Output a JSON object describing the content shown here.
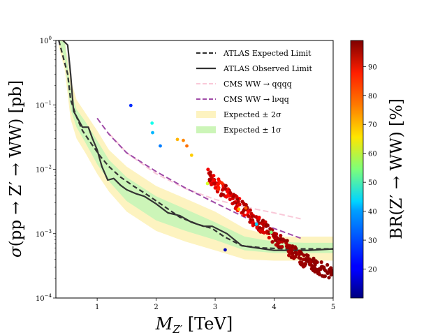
{
  "chart_data": {
    "type": "line",
    "title": "",
    "xlabel": "M_{Z'} [TeV]",
    "ylabel": "σ(pp → Z' → WW) [pb]",
    "x_scale": "linear",
    "y_scale": "log",
    "xlim": [
      0.3,
      5.0
    ],
    "ylim": [
      0.0001,
      1.0
    ],
    "x_ticks": [
      {
        "value": 1,
        "label": "1"
      },
      {
        "value": 2,
        "label": "2"
      },
      {
        "value": 3,
        "label": "3"
      },
      {
        "value": 4,
        "label": "4"
      },
      {
        "value": 5,
        "label": "5"
      }
    ],
    "y_ticks": [
      {
        "value": 0.0001,
        "base": "10",
        "exp": "−4"
      },
      {
        "value": 0.001,
        "base": "10",
        "exp": "−3"
      },
      {
        "value": 0.01,
        "base": "10",
        "exp": "−2"
      },
      {
        "value": 0.1,
        "base": "10",
        "exp": "−1"
      },
      {
        "value": 1,
        "base": "10",
        "exp": "0"
      }
    ],
    "bands": [
      {
        "name": "Expected ± 2σ",
        "color": "#fdf3c0",
        "x": [
          0.35,
          0.45,
          0.55,
          0.65,
          0.8,
          1.0,
          1.2,
          1.5,
          2.0,
          2.5,
          3.0,
          3.5,
          4.0,
          4.5,
          5.0
        ],
        "upper": [
          1.0,
          1.0,
          0.25,
          0.12,
          0.075,
          0.04,
          0.02,
          0.011,
          0.0055,
          0.0035,
          0.0022,
          0.0012,
          0.0009,
          0.0009,
          0.0009
        ],
        "lower": [
          0.8,
          0.35,
          0.06,
          0.03,
          0.018,
          0.0085,
          0.0045,
          0.0022,
          0.0011,
          0.00075,
          0.00055,
          0.0004,
          0.00038,
          0.00038,
          0.00038
        ]
      },
      {
        "name": "Expected ± 1σ",
        "color": "#ccf5b8",
        "x": [
          0.35,
          0.45,
          0.55,
          0.65,
          0.8,
          1.0,
          1.2,
          1.5,
          2.0,
          2.5,
          3.0,
          3.5,
          4.0,
          4.5,
          5.0
        ],
        "upper": [
          1.0,
          0.95,
          0.17,
          0.085,
          0.055,
          0.028,
          0.014,
          0.0075,
          0.0038,
          0.0024,
          0.0015,
          0.0009,
          0.00075,
          0.00072,
          0.00072
        ],
        "lower": [
          1.0,
          0.5,
          0.085,
          0.045,
          0.026,
          0.012,
          0.0065,
          0.0032,
          0.0016,
          0.0011,
          0.0008,
          0.00055,
          0.0005,
          0.0005,
          0.0005
        ]
      }
    ],
    "series": [
      {
        "name": "ATLAS Expected Limit",
        "color": "#333333",
        "dash": "7,4",
        "width": 2.2,
        "x": [
          0.35,
          0.5,
          0.55,
          0.65,
          0.75,
          0.9,
          1.05,
          1.2,
          1.4,
          1.6,
          1.85,
          2.1,
          2.4,
          2.7,
          2.95,
          3.15,
          3.45,
          3.8,
          4.2,
          4.6,
          5.0
        ],
        "y": [
          1.0,
          0.3,
          0.12,
          0.065,
          0.04,
          0.025,
          0.016,
          0.011,
          0.0075,
          0.0056,
          0.004,
          0.0028,
          0.0018,
          0.0014,
          0.0012,
          0.0009,
          0.00065,
          0.0006,
          0.00058,
          0.00058,
          0.00058
        ]
      },
      {
        "name": "ATLAS Observed Limit",
        "color": "#333333",
        "dash": "",
        "width": 2.2,
        "x": [
          0.42,
          0.5,
          0.55,
          0.6,
          0.75,
          0.85,
          0.92,
          1.0,
          1.08,
          1.18,
          1.28,
          1.4,
          1.5,
          1.65,
          1.8,
          2.0,
          2.2,
          2.4,
          2.6,
          2.8,
          2.95,
          3.2,
          3.45,
          3.7,
          4.0,
          4.3,
          4.6,
          5.0
        ],
        "y": [
          1.0,
          0.85,
          0.3,
          0.08,
          0.045,
          0.045,
          0.03,
          0.02,
          0.011,
          0.0068,
          0.0072,
          0.0056,
          0.0048,
          0.0042,
          0.0038,
          0.0029,
          0.0021,
          0.0019,
          0.0015,
          0.0013,
          0.0013,
          0.001,
          0.00065,
          0.0006,
          0.00055,
          0.00055,
          0.00055,
          0.00058
        ]
      },
      {
        "name": "CMS WW → qqqq",
        "color": "#f9c8d8",
        "dash": "8,4",
        "width": 2,
        "x": [
          1.2,
          1.5,
          2.0,
          2.5,
          3.0,
          3.5,
          4.0,
          4.45
        ],
        "y": [
          0.036,
          0.018,
          0.0085,
          0.005,
          0.0034,
          0.0026,
          0.0021,
          0.0017
        ]
      },
      {
        "name": "CMS WW → lνqq",
        "color": "#a04ca8",
        "dash": "8,4",
        "width": 2,
        "x": [
          1.0,
          1.2,
          1.5,
          2.0,
          2.5,
          3.0,
          3.5,
          4.0,
          4.45
        ],
        "y": [
          0.062,
          0.035,
          0.018,
          0.0092,
          0.0051,
          0.003,
          0.0018,
          0.0012,
          0.00085
        ]
      }
    ],
    "scatter": {
      "name": "Z' models",
      "points": [
        {
          "x": 1.57,
          "y": 0.098,
          "br": 25
        },
        {
          "x": 1.93,
          "y": 0.052,
          "br": 45
        },
        {
          "x": 1.94,
          "y": 0.037,
          "br": 37
        },
        {
          "x": 2.07,
          "y": 0.023,
          "br": 32
        },
        {
          "x": 2.36,
          "y": 0.029,
          "br": 72
        },
        {
          "x": 2.46,
          "y": 0.028,
          "br": 76
        },
        {
          "x": 2.52,
          "y": 0.023,
          "br": 78
        },
        {
          "x": 2.6,
          "y": 0.0165,
          "br": 70
        },
        {
          "x": 2.87,
          "y": 0.006,
          "br": 62
        },
        {
          "x": 3.17,
          "y": 0.00056,
          "br": 15
        },
        {
          "x": 3.4,
          "y": 0.0024,
          "br": 72
        },
        {
          "x": 3.52,
          "y": 0.0025,
          "br": 80
        },
        {
          "x": 3.7,
          "y": 0.0014,
          "br": 40
        },
        {
          "x": 3.95,
          "y": 0.00105,
          "br": 55
        }
      ],
      "band": {
        "x": [
          2.88,
          2.95,
          3.05,
          3.15,
          3.25,
          3.35,
          3.45,
          3.55,
          3.65,
          3.75,
          3.85,
          3.95,
          4.05,
          4.15,
          4.25,
          4.35,
          4.45,
          4.55,
          4.65,
          4.75,
          4.85,
          5.0
        ],
        "y_center": [
          0.008,
          0.0068,
          0.0055,
          0.0046,
          0.0038,
          0.0031,
          0.0026,
          0.0021,
          0.0017,
          0.0014,
          0.00118,
          0.00098,
          0.00082,
          0.00068,
          0.00058,
          0.00049,
          0.00042,
          0.00037,
          0.00033,
          0.0003,
          0.00027,
          0.00024
        ],
        "br_low": [
          86,
          84,
          84,
          85,
          86,
          86,
          87,
          88,
          89,
          90,
          91,
          92,
          93,
          94,
          95,
          95,
          96,
          96,
          97,
          97,
          98,
          98
        ],
        "br_high": [
          96,
          96,
          96,
          96,
          96,
          97,
          97,
          97,
          98,
          98,
          98,
          98,
          98,
          98,
          98,
          98,
          98,
          98,
          98,
          98,
          98,
          98
        ]
      }
    },
    "colorbar": {
      "label": "BR(Z' → WW) [%]",
      "min": 10,
      "max": 99,
      "ticks": [
        20,
        30,
        40,
        50,
        60,
        70,
        80,
        90
      ],
      "colormap": "jet"
    },
    "legend": {
      "position": "top-right",
      "entries": [
        {
          "label": "ATLAS Expected Limit",
          "kind": "line",
          "color": "#333333",
          "dash": "6,3",
          "width": 2.2
        },
        {
          "label": "ATLAS Observed Limit",
          "kind": "line",
          "color": "#333333",
          "dash": "",
          "width": 2.2
        },
        {
          "label": "CMS WW → qqqq",
          "kind": "line",
          "color": "#f9c8d8",
          "dash": "6,3",
          "width": 2
        },
        {
          "label": "CMS WW → lνqq",
          "kind": "line",
          "color": "#a04ca8",
          "dash": "6,3",
          "width": 2
        },
        {
          "label": "Expected  ±  2σ",
          "kind": "patch",
          "color": "#fdf3c0"
        },
        {
          "label": "Expected  ±  1σ",
          "kind": "patch",
          "color": "#ccf5b8"
        }
      ]
    }
  }
}
